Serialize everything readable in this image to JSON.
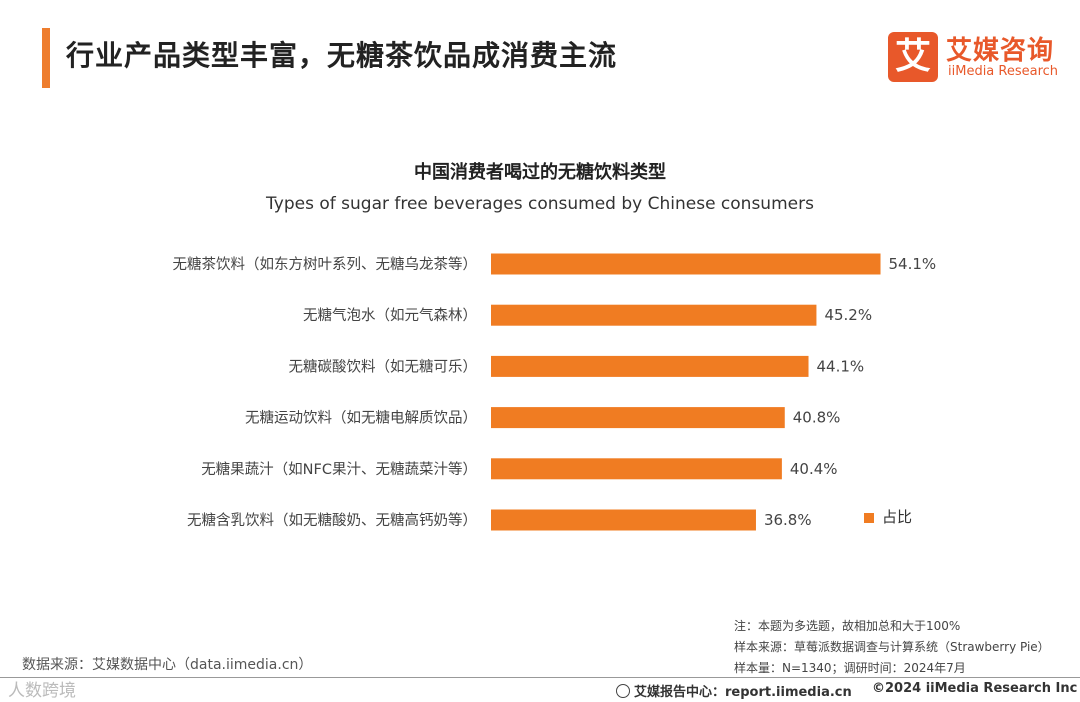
{
  "header": {
    "title": "行业产品类型丰富，无糖茶饮品成消费主流",
    "logo_mark": "艾",
    "logo_cn": "艾媒咨询",
    "logo_en": "iiMedia Research"
  },
  "chart_data": {
    "type": "bar",
    "orientation": "horizontal",
    "title": "中国消费者喝过的无糖饮料类型",
    "subtitle": "Types of sugar free beverages consumed by Chinese consumers",
    "categories": [
      "无糖茶饮料（如东方树叶系列、无糖乌龙茶等）",
      "无糖气泡水（如元气森林）",
      "无糖碳酸饮料（如无糖可乐）",
      "无糖运动饮料（如无糖电解质饮品）",
      "无糖果蔬汁（如NFC果汁、无糖蔬菜汁等）",
      "无糖含乳饮料（如无糖酸奶、无糖高钙奶等）"
    ],
    "series": [
      {
        "name": "占比",
        "values": [
          54.1,
          45.2,
          44.1,
          40.8,
          40.4,
          36.8
        ]
      }
    ],
    "data_labels": [
      "54.1%",
      "45.2%",
      "44.1%",
      "40.8%",
      "40.4%",
      "36.8%"
    ],
    "legend_position": "right",
    "colors": {
      "bar": "#f07c22"
    }
  },
  "notes": {
    "note": "注：本题为多选题，故相加总和大于100%",
    "sample_source": "样本来源：草莓派数据调查与计算系统（Strawberry Pie）",
    "sample_size": "样本量：N=1340；调研时间：2024年7月"
  },
  "footer": {
    "data_source": "数据来源：艾媒数据中心（data.iimedia.cn）",
    "watermark": "人数跨境",
    "report_center": "艾媒报告中心：report.iimedia.cn",
    "copyright": "©2024  iiMedia Research  Inc"
  },
  "colors": {
    "accent": "#ee7d2e",
    "brand": "#e8582a"
  }
}
